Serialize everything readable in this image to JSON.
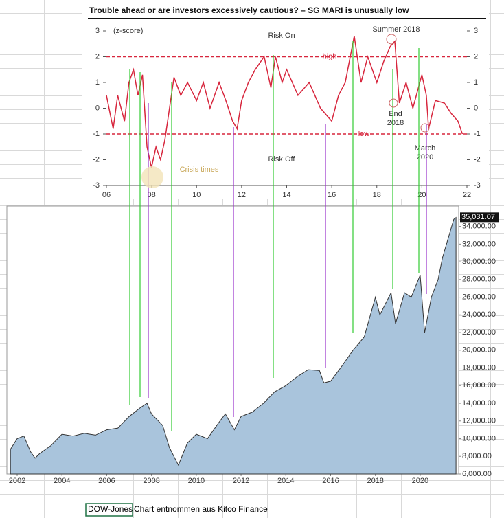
{
  "chart_data": [
    {
      "type": "line",
      "title": "Trouble ahead or are investors excessively cautious? – SG MARI is unusually low",
      "y_label": "(z-score)",
      "color": "#d7263d",
      "xlim": [
        6,
        22
      ],
      "xticks": [
        {
          "value": 6,
          "label": "06"
        },
        {
          "value": 8,
          "label": "08"
        },
        10,
        12,
        14,
        16,
        18,
        20,
        22
      ],
      "ylim": [
        -3,
        3
      ],
      "yticks": [
        -3,
        -2,
        -1,
        0,
        1,
        2,
        3
      ],
      "reference_lines": [
        {
          "value": 2,
          "label": "high"
        },
        {
          "value": -1,
          "label": "low"
        }
      ],
      "annotations": [
        "Risk On",
        "Risk Off",
        "Summer 2018",
        "End 2018",
        "March 2020",
        "Crisis times"
      ],
      "x": [
        6.0,
        6.3,
        6.5,
        6.8,
        7.0,
        7.2,
        7.4,
        7.6,
        7.8,
        8.0,
        8.2,
        8.4,
        8.6,
        9.0,
        9.3,
        9.6,
        10.0,
        10.3,
        10.6,
        11.0,
        11.3,
        11.6,
        11.8,
        12.0,
        12.3,
        12.6,
        13.0,
        13.3,
        13.5,
        13.8,
        14.0,
        14.5,
        15.0,
        15.5,
        16.0,
        16.3,
        16.6,
        17.0,
        17.3,
        17.6,
        18.0,
        18.3,
        18.6,
        18.8,
        19.0,
        19.3,
        19.6,
        20.0,
        20.2,
        20.3,
        20.6,
        21.0,
        21.3,
        21.6,
        21.8
      ],
      "values": [
        0.5,
        -0.8,
        0.5,
        -0.5,
        1.0,
        1.5,
        0.5,
        1.3,
        -1.5,
        -2.3,
        -1.5,
        -2.0,
        -1.2,
        1.2,
        0.5,
        1.0,
        0.3,
        1.0,
        0.0,
        1.0,
        0.3,
        -0.5,
        -0.8,
        0.3,
        1.0,
        1.5,
        2.0,
        0.8,
        2.0,
        1.0,
        1.5,
        0.5,
        1.0,
        0.0,
        -0.5,
        0.5,
        1.0,
        2.8,
        1.0,
        2.0,
        1.0,
        1.8,
        2.4,
        2.6,
        0.2,
        1.0,
        0.0,
        1.3,
        0.5,
        -0.8,
        0.3,
        0.2,
        -0.2,
        -0.5,
        -1.0
      ]
    },
    {
      "type": "area",
      "color": "#a9c4dc",
      "xlim": [
        2001.54,
        2021.72
      ],
      "xticks": [
        2002,
        2004,
        2006,
        2008,
        2010,
        2012,
        2014,
        2016,
        2018,
        2020
      ],
      "ylim": [
        6000,
        36300
      ],
      "yticks": [
        {
          "value": 6000,
          "label": "6,000.00"
        },
        {
          "value": 8000,
          "label": "8,000.00"
        },
        {
          "value": 10000,
          "label": "10,000.00"
        },
        {
          "value": 12000,
          "label": "12,000.00"
        },
        {
          "value": 14000,
          "label": "14,000.00"
        },
        {
          "value": 16000,
          "label": "16,000.00"
        },
        {
          "value": 18000,
          "label": "18,000.00"
        },
        {
          "value": 20000,
          "label": "20,000.00"
        },
        {
          "value": 22000,
          "label": "22,000.00"
        },
        {
          "value": 24000,
          "label": "24,000.00"
        },
        {
          "value": 26000,
          "label": "26,000.00"
        },
        {
          "value": 28000,
          "label": "28,000.00"
        },
        {
          "value": 30000,
          "label": "30,000.00"
        },
        {
          "value": 32000,
          "label": "32,000.00"
        },
        {
          "value": 34000,
          "label": "34,000.00"
        }
      ],
      "last_value": {
        "value": 35031.07,
        "label": "35,031.07"
      },
      "x": [
        2001.7,
        2002.0,
        2002.3,
        2002.6,
        2002.8,
        2003.0,
        2003.5,
        2004.0,
        2004.5,
        2005.0,
        2005.5,
        2006.0,
        2006.5,
        2007.0,
        2007.5,
        2007.8,
        2008.0,
        2008.5,
        2008.8,
        2009.2,
        2009.6,
        2010.0,
        2010.5,
        2011.0,
        2011.3,
        2011.7,
        2012.0,
        2012.5,
        2013.0,
        2013.5,
        2014.0,
        2014.5,
        2015.0,
        2015.5,
        2015.7,
        2016.0,
        2016.5,
        2017.0,
        2017.5,
        2018.0,
        2018.2,
        2018.7,
        2018.9,
        2019.3,
        2019.6,
        2020.0,
        2020.2,
        2020.5,
        2020.8,
        2021.0,
        2021.5,
        2021.6
      ],
      "values": [
        8800,
        10000,
        10300,
        8500,
        7800,
        8300,
        9200,
        10500,
        10300,
        10600,
        10400,
        11000,
        11200,
        12500,
        13500,
        14000,
        12800,
        11500,
        9000,
        7000,
        9500,
        10500,
        10000,
        11800,
        12800,
        11000,
        12500,
        13000,
        14000,
        15300,
        16000,
        17000,
        17800,
        17700,
        16300,
        16500,
        18200,
        20000,
        21500,
        26000,
        24000,
        26500,
        23000,
        26500,
        26000,
        28500,
        22000,
        26000,
        28000,
        30500,
        34800,
        35000
      ]
    }
  ],
  "caption": {
    "cell": "DOW-Jones",
    "text": "Chart entnommen aus Kitco Finance"
  }
}
